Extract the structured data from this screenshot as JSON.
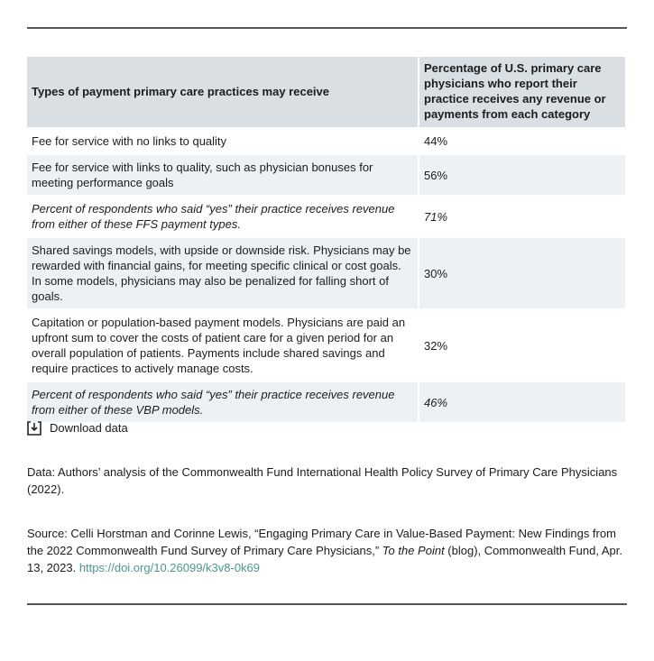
{
  "table": {
    "header": [
      "Types of payment primary care practices may receive",
      "Percentage of U.S. primary care physicians who report their practice receives any revenue or payments from each category"
    ],
    "rows": [
      [
        "Fee for service with no links to quality",
        "44%"
      ],
      [
        "Fee for service with links to quality, such as physician bonuses for meeting performance goals",
        "56%"
      ],
      [
        "Percent of respondents who said “yes” their practice receives revenue from either of these FFS payment types.",
        "71%"
      ],
      [
        "Shared savings models, with upside or downside risk. Physicians may be rewarded with financial gains, for meeting specific clinical or cost goals. In some models, physicians may also be penalized for falling short of goals.",
        "30%"
      ],
      [
        "Capitation or population-based payment models. Physicians are paid an upfront sum to cover the costs of patient care for a given period for an overall population of patients. Payments include shared savings and require practices to actively manage costs.",
        "32%"
      ],
      [
        "Percent of respondents who said “yes” their practice receives revenue from either of these VBP models.",
        "46%"
      ]
    ]
  },
  "download": "Download data",
  "data_note": "Data: Authors’ analysis of the Commonwealth Fund International Health Policy Survey of Primary Care Physicians (2022).",
  "source": {
    "prefix": "Source: Celli Horstman and Corinne Lewis, “Engaging Primary Care in Value-Based Payment: New Findings from the 2022 Commonwealth Fund Survey of Primary Care Physicians,” ",
    "italic": "To the Point",
    "suffix": " (blog), Commonwealth Fund, Apr. 13, 2023. ",
    "link": "https://doi.org/10.26099/k3v8-0k69"
  }
}
